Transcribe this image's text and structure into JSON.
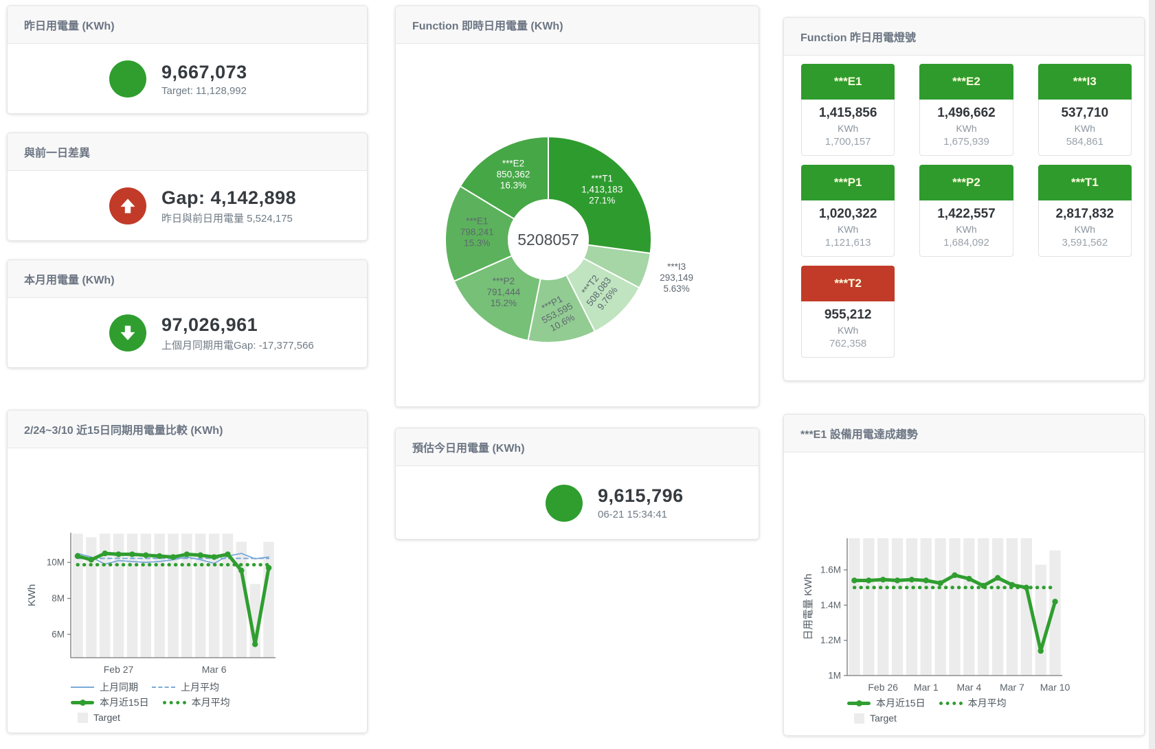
{
  "kpi_cards": [
    {
      "title": "昨日用電量 (KWh)",
      "value": "9,667,073",
      "subtitle": "Target: 11,128,992",
      "icon": "circle",
      "color": "#2f9e2f"
    },
    {
      "title": "與前一日差異",
      "value": "Gap: 4,142,898",
      "subtitle": "昨日與前日用電量 5,524,175",
      "icon": "arrow-up",
      "color": "#c13b28"
    },
    {
      "title": "本月用電量 (KWh)",
      "value": "97,026,961",
      "subtitle": "上個月同期用電Gap: -17,377,566",
      "icon": "arrow-down",
      "color": "#2f9e2f"
    },
    {
      "title": "預估今日用電量 (KWh)",
      "value": "9,615,796",
      "subtitle": "06-21 15:34:41",
      "icon": "circle",
      "color": "#2f9e2f"
    }
  ],
  "lights": {
    "title": "Function 昨日用電燈號",
    "colors": {
      "green": "#2e9b2c",
      "red": "#c13b28"
    },
    "tiles": [
      {
        "label": "***E1",
        "value": "1,415,856",
        "unit": "KWh",
        "target": "1,700,157",
        "status": "green"
      },
      {
        "label": "***E2",
        "value": "1,496,662",
        "unit": "KWh",
        "target": "1,675,939",
        "status": "green"
      },
      {
        "label": "***I3",
        "value": "537,710",
        "unit": "KWh",
        "target": "584,861",
        "status": "green"
      },
      {
        "label": "***P1",
        "value": "1,020,322",
        "unit": "KWh",
        "target": "1,121,613",
        "status": "green"
      },
      {
        "label": "***P2",
        "value": "1,422,557",
        "unit": "KWh",
        "target": "1,684,092",
        "status": "green"
      },
      {
        "label": "***T1",
        "value": "2,817,832",
        "unit": "KWh",
        "target": "3,591,562",
        "status": "green"
      },
      {
        "label": "***T2",
        "value": "955,212",
        "unit": "KWh",
        "target": "762,358",
        "status": "red"
      }
    ]
  },
  "chart_data": [
    {
      "type": "pie",
      "card_title": "Function 即時日用電量 (KWh)",
      "center_total": "5208057",
      "legend_position": "none",
      "slices": [
        {
          "label": "***T1",
          "value": 1413183,
          "value_text": "1,413,183",
          "pct": 27.1,
          "pct_text": "27.1%",
          "color": "#2e9b2e",
          "text_color": "#ffffff",
          "rotate": 0
        },
        {
          "label": "***I3",
          "value": 293149,
          "value_text": "293,149",
          "pct": 5.63,
          "pct_text": "5.63%",
          "color": "#a6d5a6",
          "text_color": "#5d6770",
          "rotate": 0,
          "outside": true
        },
        {
          "label": "***T2",
          "value": 508083,
          "value_text": "508,083",
          "pct": 9.76,
          "pct_text": "9.76%",
          "color": "#bfe4bf",
          "text_color": "#5d6770",
          "rotate": -52,
          "label_r": 110
        },
        {
          "label": "***P1",
          "value": 553595,
          "value_text": "553,595",
          "pct": 10.6,
          "pct_text": "10.6%",
          "color": "#92cc92",
          "text_color": "#5d6770",
          "rotate": -28,
          "label_r": 112
        },
        {
          "label": "***P2",
          "value": 791444,
          "value_text": "791,444",
          "pct": 15.2,
          "pct_text": "15.2%",
          "color": "#77c077",
          "text_color": "#5d6770",
          "rotate": 0
        },
        {
          "label": "***E1",
          "value": 798241,
          "value_text": "798,241",
          "pct": 15.3,
          "pct_text": "15.3%",
          "color": "#5cb25c",
          "text_color": "#5d6770",
          "rotate": 0
        },
        {
          "label": "***E2",
          "value": 850362,
          "value_text": "850,362",
          "pct": 16.3,
          "pct_text": "16.3%",
          "color": "#46a746",
          "text_color": "#ffffff",
          "rotate": 0
        }
      ]
    },
    {
      "type": "line",
      "card_title": "2/24~3/10 近15日同期用電量比較 (KWh)",
      "ylabel": "KWh",
      "x_days": [
        "2/24",
        "2/25",
        "2/26",
        "2/27",
        "2/28",
        "3/1",
        "3/2",
        "3/3",
        "3/4",
        "3/5",
        "3/6",
        "3/7",
        "3/8",
        "3/9",
        "3/10"
      ],
      "xticks": [
        {
          "index": 3,
          "label": "Feb 27"
        },
        {
          "index": 10,
          "label": "Mar 6"
        }
      ],
      "ylim": [
        4.7,
        11.65
      ],
      "yticks": [
        {
          "v": 6,
          "label": "6M"
        },
        {
          "v": 8,
          "label": "8M"
        },
        {
          "v": 10,
          "label": "10M"
        }
      ],
      "unit_scale": "M KWh",
      "target_bars": {
        "name": "Target",
        "color": "#ececec",
        "values": [
          11.6,
          11.4,
          11.6,
          11.6,
          11.6,
          11.6,
          11.6,
          11.6,
          11.6,
          11.6,
          11.6,
          11.6,
          11.15,
          8.8,
          11.15
        ]
      },
      "series": [
        {
          "name": "上月同期",
          "style": "solid",
          "color": "#7aa9d8",
          "width": 1.8,
          "values": [
            10.5,
            10.3,
            9.9,
            10.1,
            10.05,
            10.0,
            10.05,
            10.15,
            10.3,
            10.15,
            9.95,
            10.35,
            10.5,
            10.2,
            10.3
          ]
        },
        {
          "name": "上月平均",
          "style": "dashed",
          "color": "#7aa9d8",
          "width": 2,
          "const": 10.22
        },
        {
          "name": "本月平均",
          "style": "dotted",
          "color": "#2f9e2f",
          "width": 5,
          "const": 9.87
        },
        {
          "name": "本月近15日",
          "style": "solid",
          "color": "#2f9e2f",
          "width": 5,
          "markers": true,
          "values": [
            10.35,
            10.15,
            10.5,
            10.45,
            10.45,
            10.4,
            10.35,
            10.3,
            10.45,
            10.4,
            10.3,
            10.45,
            9.55,
            5.45,
            9.7
          ]
        }
      ],
      "legend_rows": [
        [
          {
            "sw": "line-blue",
            "label": "上月同期"
          },
          {
            "sw": "dash-blue",
            "label": "上月平均"
          }
        ],
        [
          {
            "sw": "line-green",
            "label": "本月近15日"
          },
          {
            "sw": "dot-green",
            "label": "本月平均"
          }
        ],
        [
          {
            "sw": "box-gray",
            "label": "Target"
          }
        ]
      ]
    },
    {
      "type": "line",
      "card_title": "***E1 設備用電達成趨勢",
      "ylabel": "日用電量 KWh",
      "x_days": [
        "2/24",
        "2/25",
        "2/26",
        "2/27",
        "2/28",
        "3/1",
        "3/2",
        "3/3",
        "3/4",
        "3/5",
        "3/6",
        "3/7",
        "3/8",
        "3/9",
        "3/10"
      ],
      "xticks": [
        {
          "index": 2,
          "label": "Feb 26"
        },
        {
          "index": 5,
          "label": "Mar 1"
        },
        {
          "index": 8,
          "label": "Mar 4"
        },
        {
          "index": 11,
          "label": "Mar 7"
        },
        {
          "index": 14,
          "label": "Mar 10"
        }
      ],
      "ylim": [
        1.0,
        1.78
      ],
      "yticks": [
        {
          "v": 1,
          "label": "1M"
        },
        {
          "v": 1.2,
          "label": "1.2M"
        },
        {
          "v": 1.4,
          "label": "1.4M"
        },
        {
          "v": 1.6,
          "label": "1.6M"
        }
      ],
      "unit_scale": "M KWh",
      "target_bars": {
        "name": "Target",
        "color": "#ececec",
        "values": [
          1.78,
          1.78,
          1.78,
          1.78,
          1.78,
          1.78,
          1.78,
          1.78,
          1.78,
          1.78,
          1.78,
          1.78,
          1.78,
          1.63,
          1.71
        ]
      },
      "series": [
        {
          "name": "本月平均",
          "style": "dotted",
          "color": "#2f9e2f",
          "width": 5,
          "const": 1.5
        },
        {
          "name": "本月近15日",
          "style": "solid",
          "color": "#2f9e2f",
          "width": 5,
          "markers": true,
          "values": [
            1.54,
            1.54,
            1.545,
            1.54,
            1.545,
            1.54,
            1.525,
            1.57,
            1.55,
            1.51,
            1.555,
            1.515,
            1.5,
            1.14,
            1.42
          ]
        }
      ],
      "legend_rows": [
        [
          {
            "sw": "line-green",
            "label": "本月近15日"
          },
          {
            "sw": "dot-green",
            "label": "本月平均"
          }
        ],
        [
          {
            "sw": "box-gray",
            "label": "Target"
          }
        ]
      ]
    }
  ]
}
